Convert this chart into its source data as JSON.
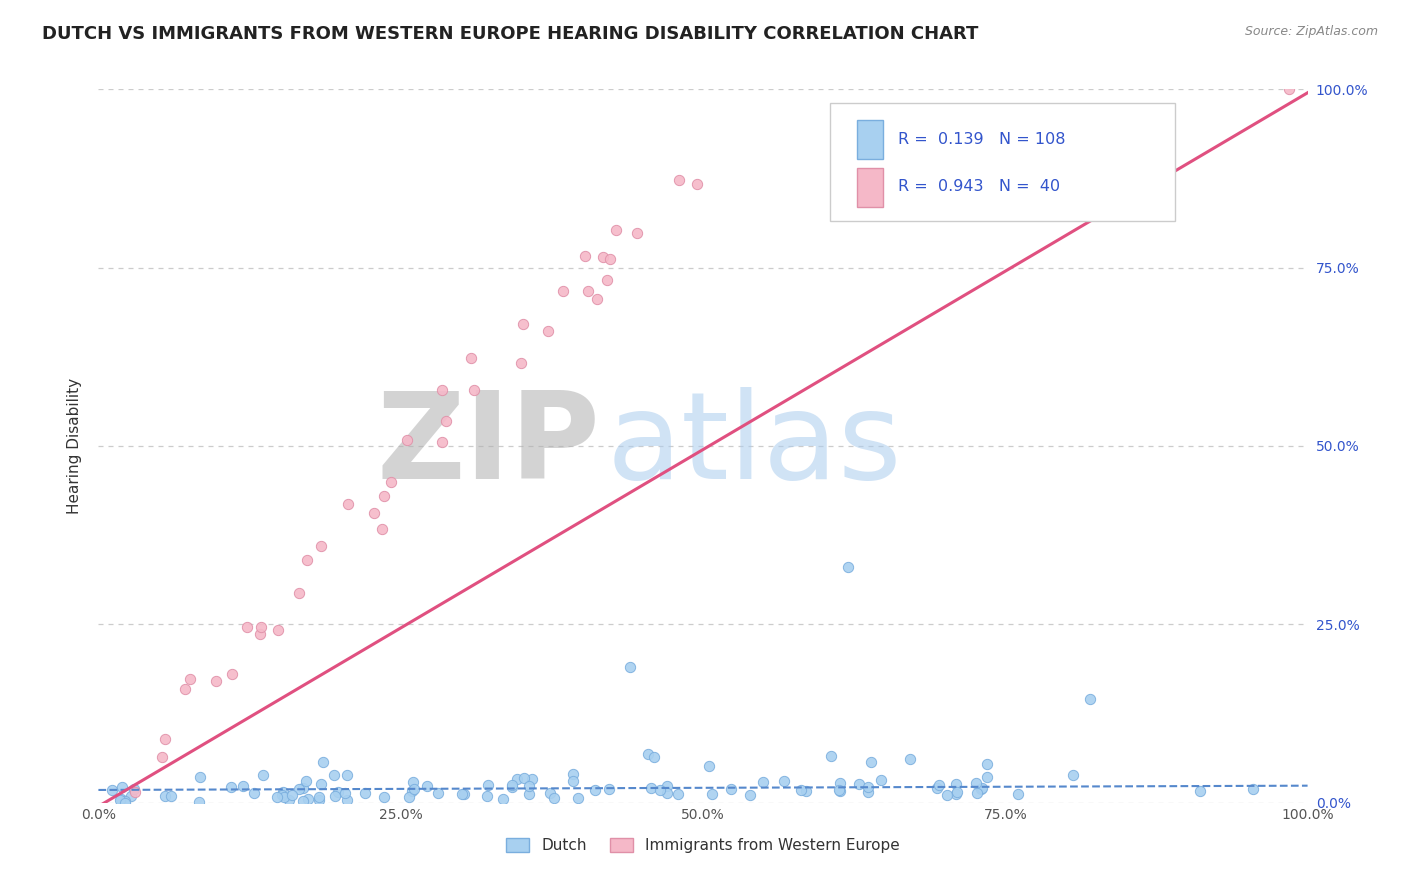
{
  "title": "DUTCH VS IMMIGRANTS FROM WESTERN EUROPE HEARING DISABILITY CORRELATION CHART",
  "source": "Source: ZipAtlas.com",
  "ylabel": "Hearing Disability",
  "x_tick_labels": [
    "0.0%",
    "25.0%",
    "50.0%",
    "75.0%",
    "100.0%"
  ],
  "y_tick_labels_right": [
    "0.0%",
    "25.0%",
    "50.0%",
    "75.0%",
    "100.0%"
  ],
  "series": [
    {
      "name": "Dutch",
      "color": "#A8D0F0",
      "edge_color": "#7AAEDE",
      "R": 0.139,
      "N": 108,
      "line_color": "#5588CC",
      "line_style": "--"
    },
    {
      "name": "Immigrants from Western Europe",
      "color": "#F5B8C8",
      "edge_color": "#E090A8",
      "R": 0.943,
      "N": 40,
      "line_color": "#E05080",
      "line_style": "-"
    }
  ],
  "legend_R_N_color": "#3355CC",
  "background_color": "#FFFFFF",
  "grid_color": "#CCCCCC",
  "watermark_zip_color": "#AAAAAA",
  "watermark_atlas_color": "#AACCEE",
  "xlim": [
    0.0,
    1.0
  ],
  "ylim": [
    0.0,
    1.0
  ],
  "title_fontsize": 13,
  "axis_fontsize": 11,
  "tick_fontsize": 10,
  "right_tick_color": "#3355CC"
}
